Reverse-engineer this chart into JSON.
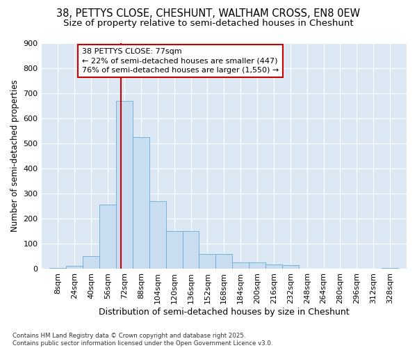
{
  "title1": "38, PETTYS CLOSE, CHESHUNT, WALTHAM CROSS, EN8 0EW",
  "title2": "Size of property relative to semi-detached houses in Cheshunt",
  "xlabel": "Distribution of semi-detached houses by size in Cheshunt",
  "ylabel": "Number of semi-detached properties",
  "bins_left": [
    8,
    24,
    40,
    56,
    72,
    88,
    104,
    120,
    136,
    152,
    168,
    184,
    200,
    216,
    232,
    248,
    264,
    280,
    296,
    312,
    328
  ],
  "bar_heights": [
    5,
    12,
    50,
    255,
    670,
    525,
    270,
    150,
    150,
    60,
    60,
    27,
    27,
    18,
    15,
    2,
    2,
    2,
    2,
    2,
    5
  ],
  "bin_width": 16,
  "bar_color": "#c8ddf0",
  "bar_edge_color": "#6aaad4",
  "property_value": 77,
  "vline_color": "#cc0000",
  "annotation_text": "38 PETTYS CLOSE: 77sqm\n← 22% of semi-detached houses are smaller (447)\n76% of semi-detached houses are larger (1,550) →",
  "annotation_box_color": "#ffffff",
  "annotation_box_edge": "#cc0000",
  "ylim": [
    0,
    900
  ],
  "yticks": [
    0,
    100,
    200,
    300,
    400,
    500,
    600,
    700,
    800,
    900
  ],
  "background_color": "#dce9f5",
  "grid_color": "#ffffff",
  "footnote": "Contains HM Land Registry data © Crown copyright and database right 2025.\nContains public sector information licensed under the Open Government Licence v3.0.",
  "title1_fontsize": 10.5,
  "title2_fontsize": 9.5,
  "xlabel_fontsize": 9,
  "ylabel_fontsize": 8.5,
  "annotation_fontsize": 8,
  "tick_fontsize": 8
}
